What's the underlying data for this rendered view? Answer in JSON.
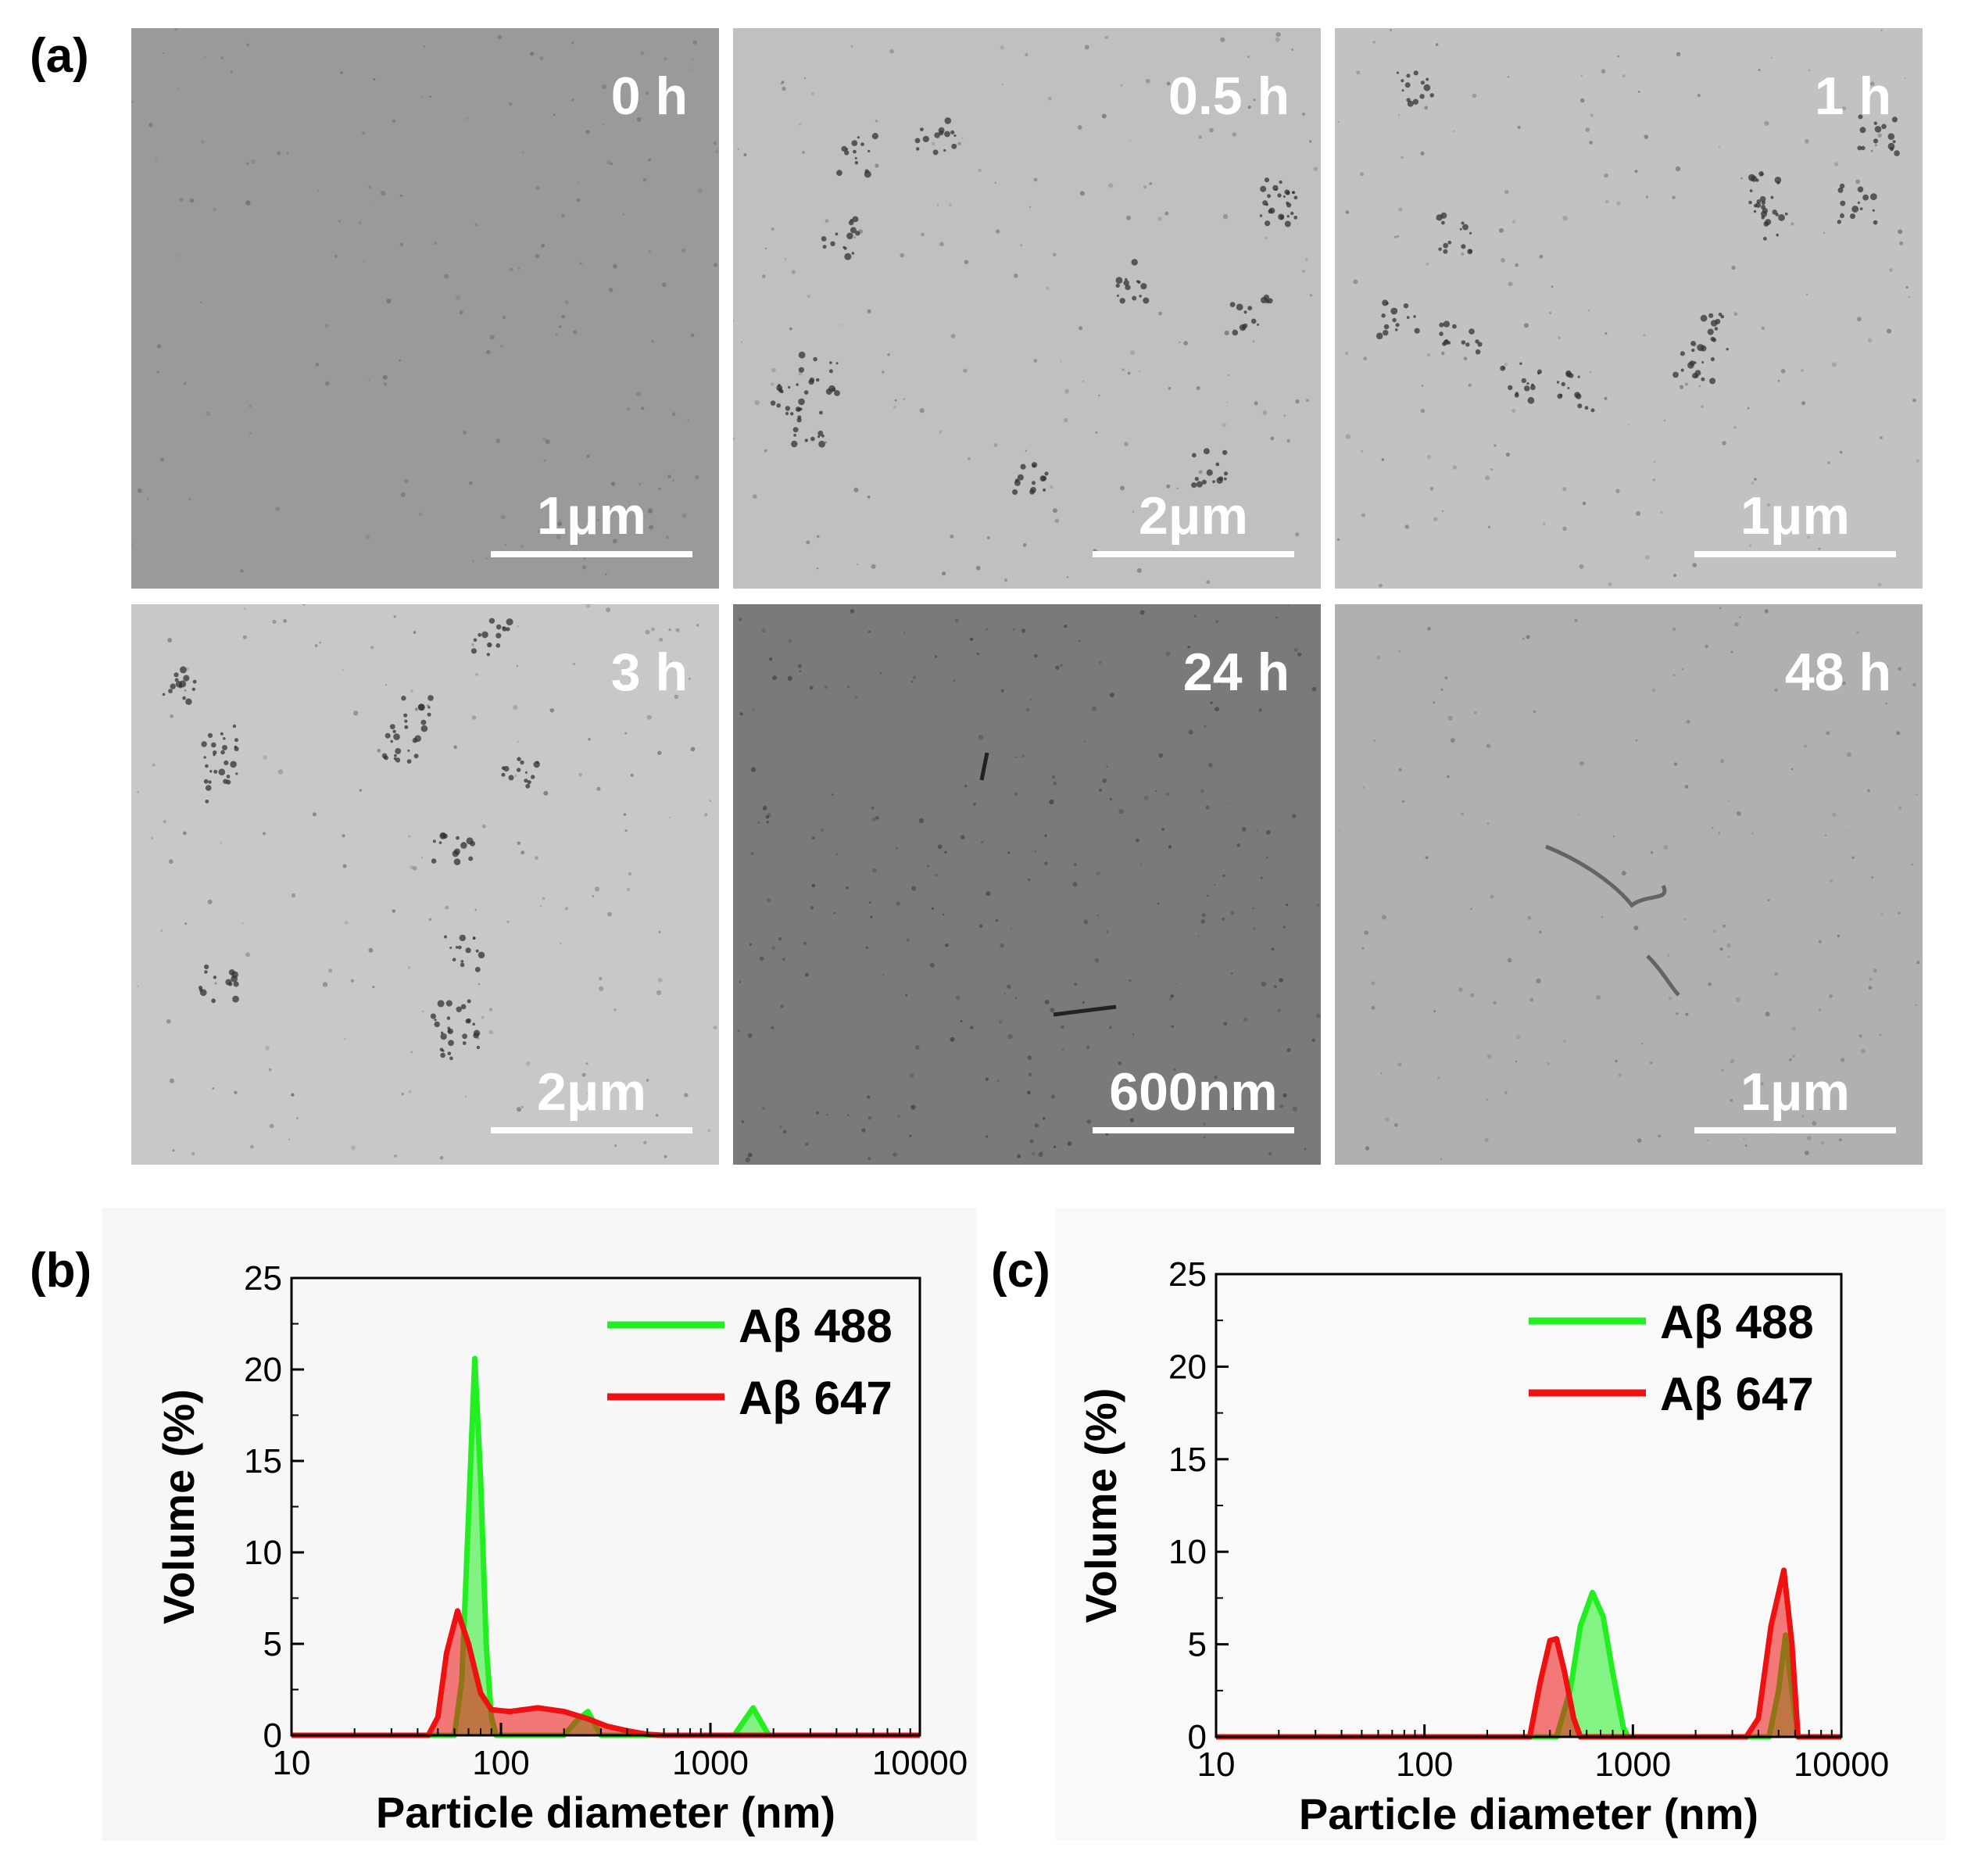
{
  "panel_a": {
    "label": "(a)",
    "images": [
      {
        "time": "0 h",
        "scale": "1μm",
        "tone": "#9a9a9a",
        "noise": "fine"
      },
      {
        "time": "0.5 h",
        "scale": "2μm",
        "tone": "#c0c0c0",
        "noise": "aggregates"
      },
      {
        "time": "1 h",
        "scale": "1μm",
        "tone": "#c2c2c2",
        "noise": "aggregates"
      },
      {
        "time": "3 h",
        "scale": "2μm",
        "tone": "#c8c8c8",
        "noise": "aggregates"
      },
      {
        "time": "24 h",
        "scale": "600nm",
        "tone": "#7a7a7a",
        "noise": "dark"
      },
      {
        "time": "48 h",
        "scale": "1μm",
        "tone": "#b0b0b0",
        "noise": "fibril"
      }
    ]
  },
  "chart_data": [
    {
      "panel_label": "(b)",
      "type": "area",
      "xlabel": "Particle diameter (nm)",
      "ylabel": "Volume (%)",
      "xscale": "log",
      "xlim": [
        10,
        10000
      ],
      "ylim": [
        0,
        25
      ],
      "xticks": [
        "10",
        "100",
        "1000",
        "10000"
      ],
      "yticks": [
        "0",
        "5",
        "10",
        "15",
        "20",
        "25"
      ],
      "legend_position": "top-right",
      "series": [
        {
          "name": "Aβ 488",
          "color": "#22ee22",
          "x": [
            10,
            60,
            65,
            70,
            75,
            80,
            85,
            90,
            95,
            200,
            230,
            260,
            300,
            1300,
            1450,
            1600,
            1750,
            1900,
            10000
          ],
          "y": [
            0,
            0,
            3,
            12,
            20.6,
            14,
            5,
            1,
            0,
            0,
            0.8,
            1.3,
            0,
            0,
            0.8,
            1.5,
            0.7,
            0,
            0
          ]
        },
        {
          "name": "Aβ 647",
          "color": "#ee1111",
          "x": [
            10,
            45,
            50,
            55,
            62,
            70,
            80,
            90,
            110,
            150,
            200,
            260,
            320,
            400,
            500,
            600,
            10000
          ],
          "y": [
            0,
            0,
            1,
            4.5,
            6.8,
            5,
            2.3,
            1.4,
            1.3,
            1.5,
            1.3,
            0.9,
            0.5,
            0.25,
            0.05,
            0,
            0
          ]
        }
      ]
    },
    {
      "panel_label": "(c)",
      "type": "area",
      "xlabel": "Particle diameter (nm)",
      "ylabel": "Volume (%)",
      "xscale": "log",
      "xlim": [
        10,
        10000
      ],
      "ylim": [
        0,
        25
      ],
      "xticks": [
        "10",
        "100",
        "1000",
        "10000"
      ],
      "yticks": [
        "0",
        "5",
        "10",
        "15",
        "20",
        "25"
      ],
      "legend_position": "top-right",
      "series": [
        {
          "name": "Aβ 488",
          "color": "#22ee22",
          "x": [
            10,
            430,
            500,
            560,
            640,
            720,
            800,
            900,
            950,
            4500,
            5000,
            5400,
            5800,
            6200,
            10000
          ],
          "y": [
            0,
            0,
            2.5,
            6,
            7.8,
            6.5,
            3.5,
            0.5,
            0,
            0,
            2.5,
            5.5,
            2.5,
            0,
            0
          ]
        },
        {
          "name": "Aβ 647",
          "color": "#ee1111",
          "x": [
            10,
            320,
            360,
            400,
            430,
            470,
            520,
            560,
            3500,
            4000,
            4600,
            5300,
            5800,
            6200,
            10000
          ],
          "y": [
            0,
            0,
            3,
            5.2,
            5.3,
            3.5,
            1,
            0,
            0,
            1,
            6,
            9,
            5,
            0,
            0
          ]
        }
      ]
    }
  ]
}
